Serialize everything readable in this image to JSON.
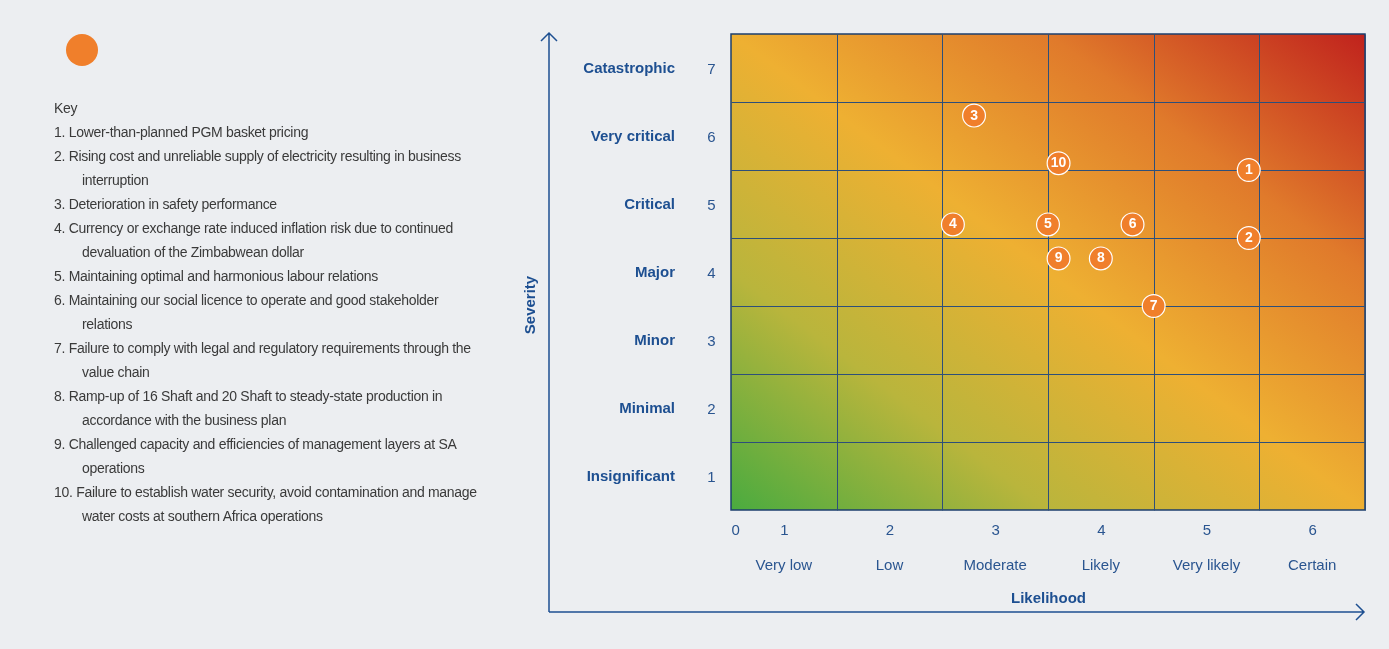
{
  "chart_data": {
    "type": "scatter",
    "xlabel": "Likelihood",
    "annotations": [
      "Key",
      "1. Lower-than-planned PGM basket pricing",
      "2. Rising cost and unreliable supply of electricity resulting in business interruption",
      "3. Deterioration in safety performance",
      "4. Currency or exchange rate induced inflation risk due to continued devaluation of the Zimbabwean dollar",
      "5. Maintaining optimal and harmonious labour relations",
      "6. Maintaining our social licence to operate and good stakeholder relations",
      "7. Failure to comply with legal and regulatory requirements through the value chain",
      "8. Ramp-up of 16 Shaft and 20 Shaft to steady-state production in accordance with the business plan",
      "9. Challenged capacity and efficiencies of management layers at SA operations",
      "10. Failure to establish water security, avoid contamination and manage water costs at southern Africa operations",
      "Very low",
      "Low",
      "Moderate",
      "Likely",
      "Very likely",
      "Certain",
      "Insignificant",
      "Minimal",
      "Minor",
      "Major",
      "Critical",
      "Very critical",
      "Catastrophic",
      {
        "text": "Severity"
      }
    ],
    "xlim": [
      0,
      6
    ],
    "xticks": [
      {
        "value": 0,
        "label": "0"
      },
      {
        "value": 0.5,
        "label": "1"
      },
      {
        "value": 1,
        "label": null
      },
      {
        "value": 1.5,
        "label": "2"
      },
      {
        "value": 2,
        "label": null
      },
      {
        "value": 2.5,
        "label": "3"
      },
      {
        "value": 3,
        "label": null
      },
      {
        "value": 3.5,
        "label": "4"
      },
      {
        "value": 4,
        "label": null
      },
      {
        "value": 4.5,
        "label": "5"
      },
      {
        "value": 5,
        "label": null
      },
      {
        "value": 5.5,
        "label": "6"
      },
      {
        "value": 6,
        "label": null
      }
    ],
    "ylim": [
      0,
      7
    ],
    "yticks": [
      {
        "value": 0.5,
        "label": "1"
      },
      {
        "value": 1,
        "label": null
      },
      {
        "value": 1.5,
        "label": "2"
      },
      {
        "value": 2,
        "label": null
      },
      {
        "value": 2.5,
        "label": "3"
      },
      {
        "value": 3,
        "label": null
      },
      {
        "value": 3.5,
        "label": "4"
      },
      {
        "value": 4,
        "label": null
      },
      {
        "value": 4.5,
        "label": "5"
      },
      {
        "value": 5,
        "label": null
      },
      {
        "value": 5.5,
        "label": "6"
      },
      {
        "value": 6,
        "label": null
      },
      {
        "value": 6.5,
        "label": "7"
      }
    ],
    "grid": true,
    "marker": "circle",
    "series": [
      {
        "name": "1",
        "color": "#f07f2b",
        "x": [
          4.9
        ],
        "values": [
          5.0
        ]
      },
      {
        "name": "2",
        "color": "#f07f2b",
        "x": [
          4.9
        ],
        "values": [
          4.0
        ]
      },
      {
        "name": "3",
        "color": "#f07f2b",
        "x": [
          2.3
        ],
        "values": [
          5.8
        ]
      },
      {
        "name": "4",
        "color": "#f07f2b",
        "x": [
          2.1
        ],
        "values": [
          4.2
        ]
      },
      {
        "name": "5",
        "color": "#f07f2b",
        "x": [
          3.0
        ],
        "values": [
          4.2
        ]
      },
      {
        "name": "6",
        "color": "#f07f2b",
        "x": [
          3.8
        ],
        "values": [
          4.2
        ]
      },
      {
        "name": "7",
        "color": "#f07f2b",
        "x": [
          4.0
        ],
        "values": [
          3.0
        ]
      },
      {
        "name": "8",
        "color": "#f07f2b",
        "x": [
          3.5
        ],
        "values": [
          3.7
        ]
      },
      {
        "name": "9",
        "color": "#f07f2b",
        "x": [
          3.1
        ],
        "values": [
          3.7
        ]
      },
      {
        "name": "10",
        "color": "#f07f2b",
        "x": [
          3.1
        ],
        "values": [
          5.1
        ]
      }
    ]
  }
}
